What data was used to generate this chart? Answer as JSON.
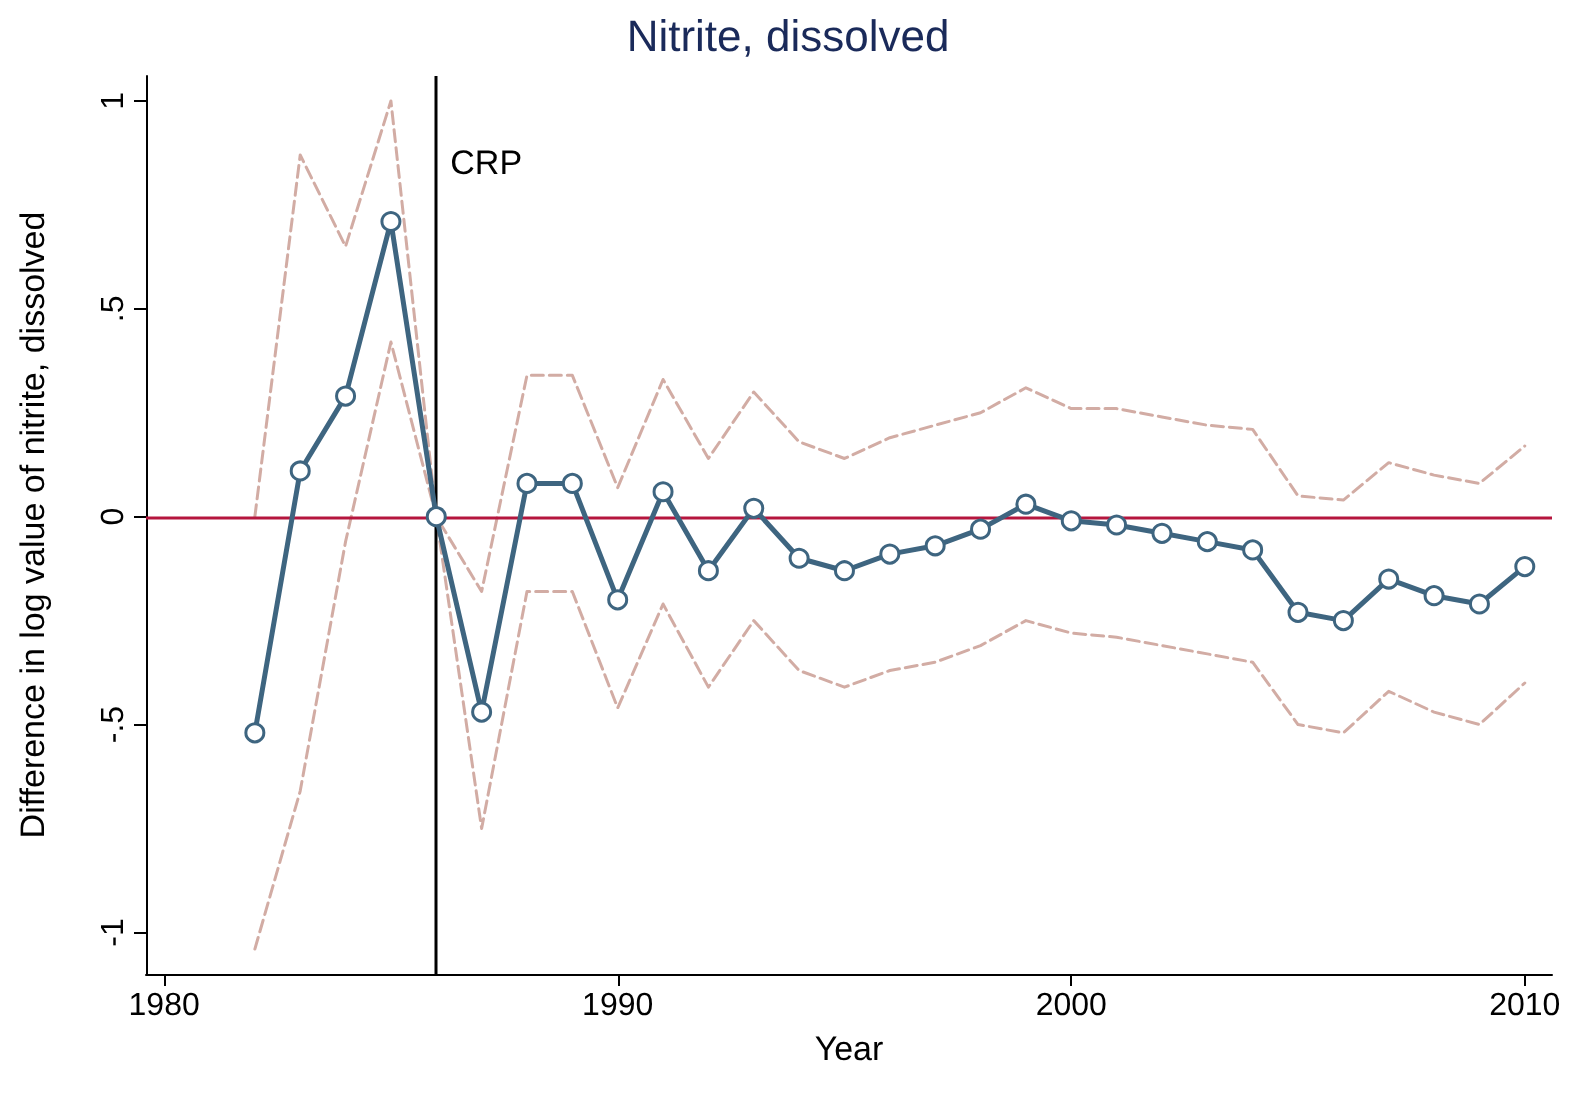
{
  "chart_data": {
    "type": "line",
    "title": "Nitrite, dissolved",
    "xlabel": "Year",
    "ylabel": "Difference in log value of nitrite, dissolved",
    "x": [
      1982,
      1983,
      1984,
      1985,
      1986,
      1987,
      1988,
      1989,
      1990,
      1991,
      1992,
      1993,
      1994,
      1995,
      1996,
      1997,
      1998,
      1999,
      2000,
      2001,
      2002,
      2003,
      2004,
      2005,
      2006,
      2007,
      2008,
      2009,
      2010
    ],
    "series": [
      {
        "color": "#d2aca4",
        "line_style": "dashed",
        "marker": "none",
        "values": [
          0,
          0.87,
          0.65,
          1.0,
          0,
          -0.18,
          0.34,
          0.34,
          0.07,
          0.33,
          0.14,
          0.3,
          0.18,
          0.14,
          0.19,
          0.22,
          0.25,
          0.31,
          0.26,
          0.26,
          0.24,
          0.22,
          0.21,
          0.05,
          0.04,
          0.13,
          0.1,
          0.08,
          0.17
        ]
      },
      {
        "color": "#d2aca4",
        "line_style": "dashed",
        "marker": "none",
        "values": [
          -1.04,
          -0.66,
          -0.06,
          0.42,
          0,
          -0.75,
          -0.18,
          -0.18,
          -0.46,
          -0.21,
          -0.41,
          -0.25,
          -0.37,
          -0.41,
          -0.37,
          -0.35,
          -0.31,
          -0.25,
          -0.28,
          -0.29,
          -0.31,
          -0.33,
          -0.35,
          -0.5,
          -0.52,
          -0.42,
          -0.47,
          -0.5,
          -0.4
        ]
      },
      {
        "color": "#3e6580",
        "line_style": "solid",
        "marker": "circle",
        "values": [
          -0.52,
          0.11,
          0.29,
          0.71,
          0,
          -0.47,
          0.08,
          0.08,
          -0.2,
          0.06,
          -0.13,
          0.02,
          -0.1,
          -0.13,
          -0.09,
          -0.07,
          -0.03,
          0.03,
          -0.01,
          -0.02,
          -0.04,
          -0.06,
          -0.08,
          -0.23,
          -0.25,
          -0.15,
          -0.19,
          -0.21,
          -0.12
        ]
      }
    ],
    "xlim": [
      1979.6,
      2010.6
    ],
    "xticks": [
      1980,
      1990,
      2000,
      2010
    ],
    "ylim": [
      -1.1,
      1.06
    ],
    "yticks": [
      {
        "value": -1,
        "label": "-1"
      },
      {
        "value": -0.5,
        "label": "-.5"
      },
      0,
      {
        "value": 0.5,
        "label": ".5"
      },
      1
    ],
    "ref_lines": [
      {
        "axis": "y",
        "value": 0,
        "color": "#b5163e"
      },
      {
        "axis": "x",
        "value": 1986,
        "label": "CRP",
        "color": "#000000"
      }
    ],
    "grid": false
  }
}
